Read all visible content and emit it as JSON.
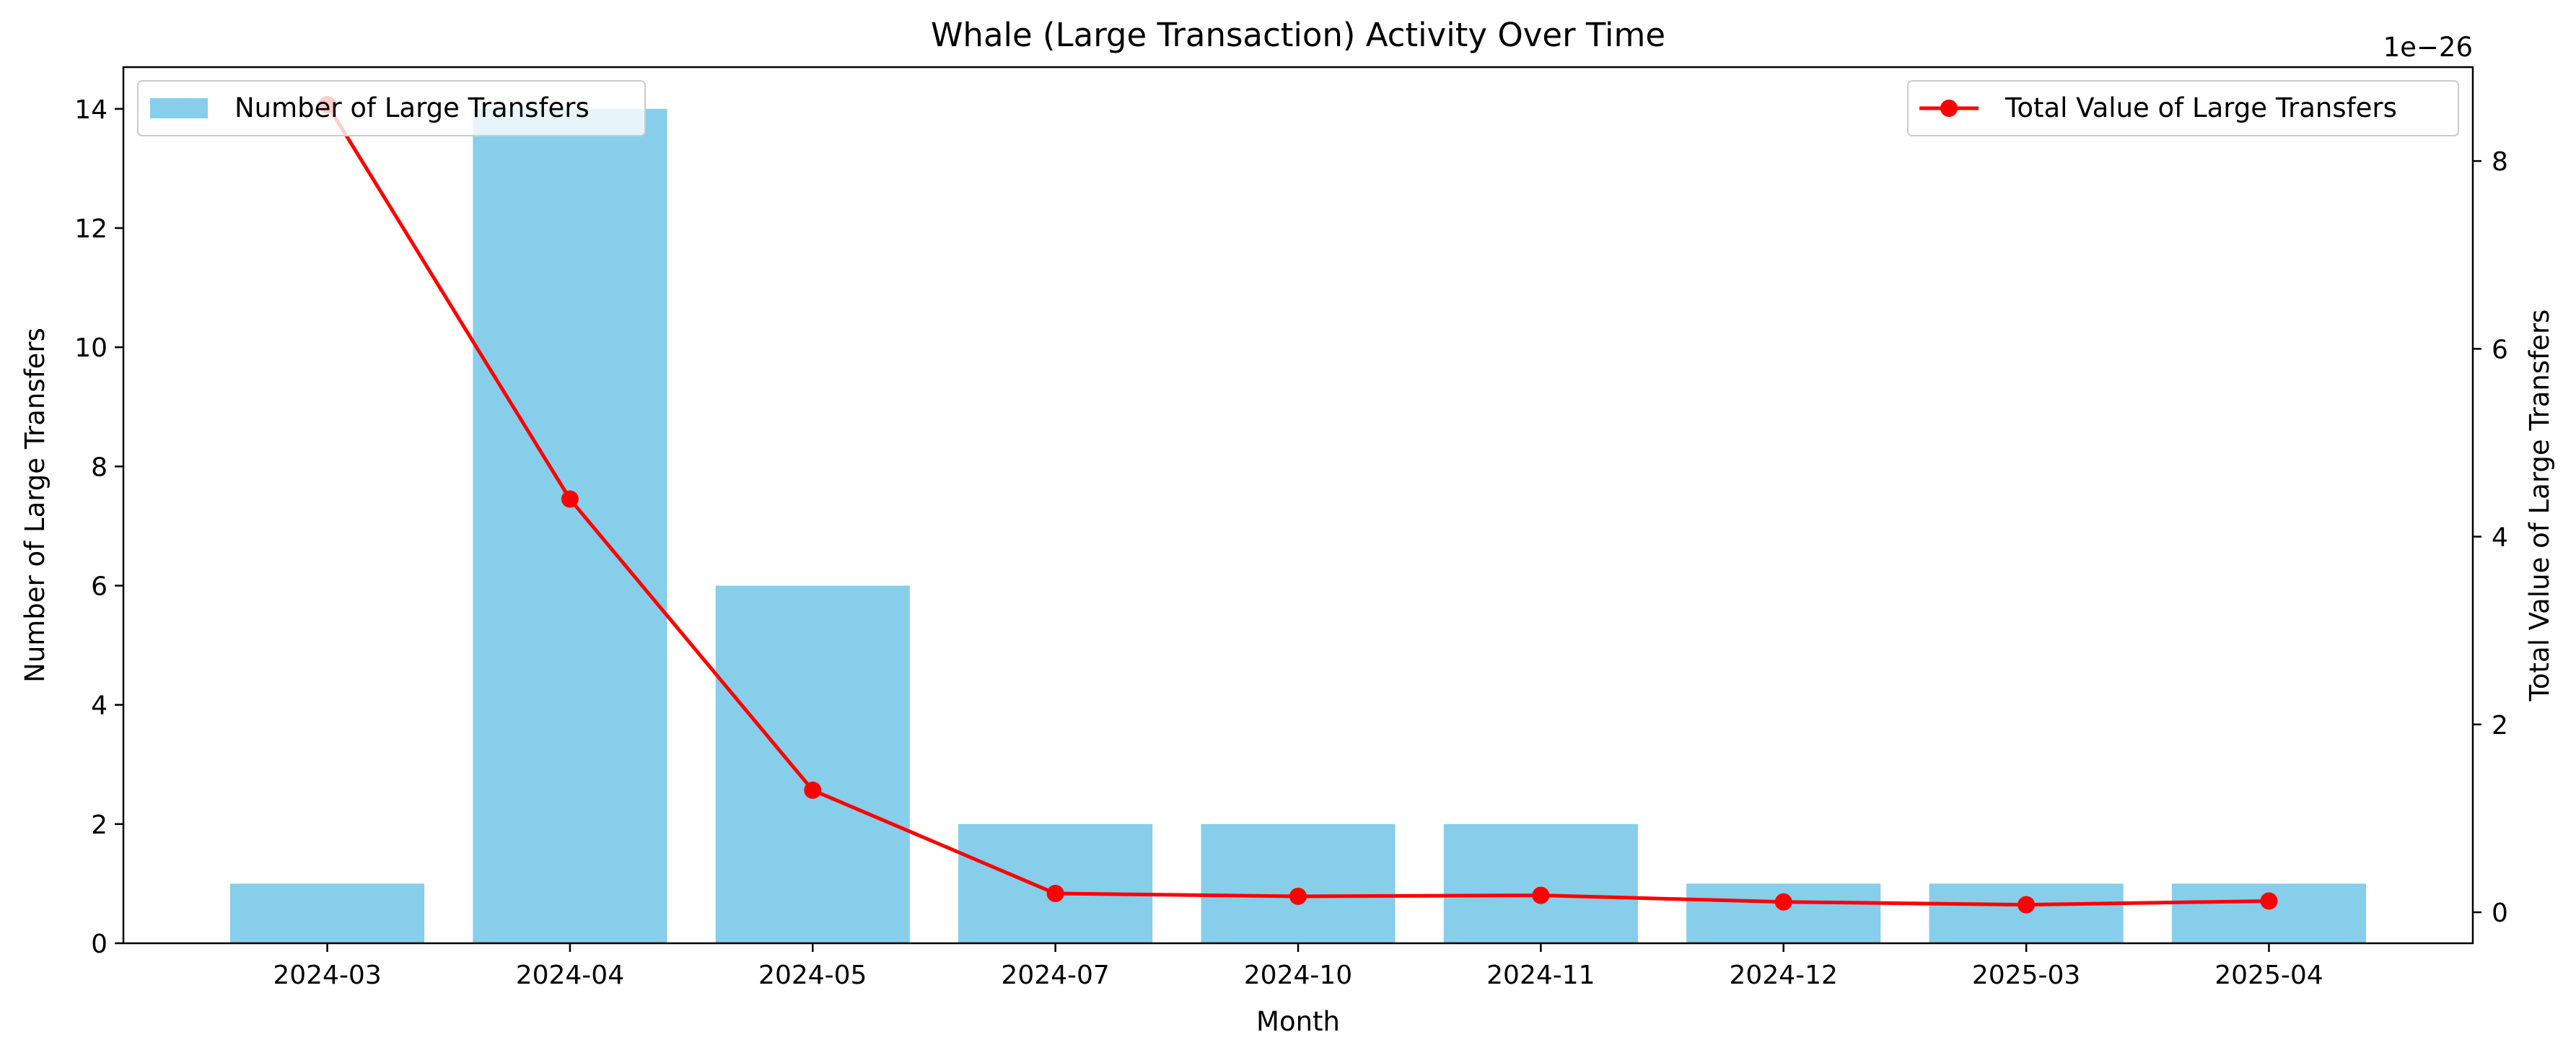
{
  "chart_data": {
    "type": "bar+line",
    "title": "Whale (Large Transaction) Activity Over Time",
    "xlabel": "Month",
    "ylabel_left": "Number of Large Transfers",
    "ylabel_right": "Total Value of Large Transfers",
    "right_axis_offset_text": "1e−26",
    "categories": [
      "2024-03",
      "2024-04",
      "2024-05",
      "2024-07",
      "2024-10",
      "2024-11",
      "2024-12",
      "2025-03",
      "2025-04"
    ],
    "series": [
      {
        "name": "Number of Large Transfers",
        "type": "bar",
        "axis": "left",
        "values": [
          1,
          14,
          6,
          2,
          2,
          2,
          1,
          1,
          1
        ]
      },
      {
        "name": "Total Value of Large Transfers",
        "type": "line",
        "axis": "right",
        "values": [
          8.6,
          4.4,
          1.3,
          0.2,
          0.17,
          0.18,
          0.11,
          0.08,
          0.12
        ]
      }
    ],
    "ylim_left": [
      0,
      14.7
    ],
    "yticks_left": [
      "0",
      "2",
      "4",
      "6",
      "8",
      "10",
      "12",
      "14"
    ],
    "ylim_right": [
      -0.33,
      9.0
    ],
    "yticks_right": [
      "0",
      "2",
      "4",
      "6",
      "8"
    ],
    "grid": false,
    "legend_left": "top-left",
    "legend_right": "top-right",
    "colors": {
      "bar": "#87ceeb",
      "line": "#ff0000",
      "axes": "#000000",
      "legend_border": "#cccccc"
    }
  }
}
